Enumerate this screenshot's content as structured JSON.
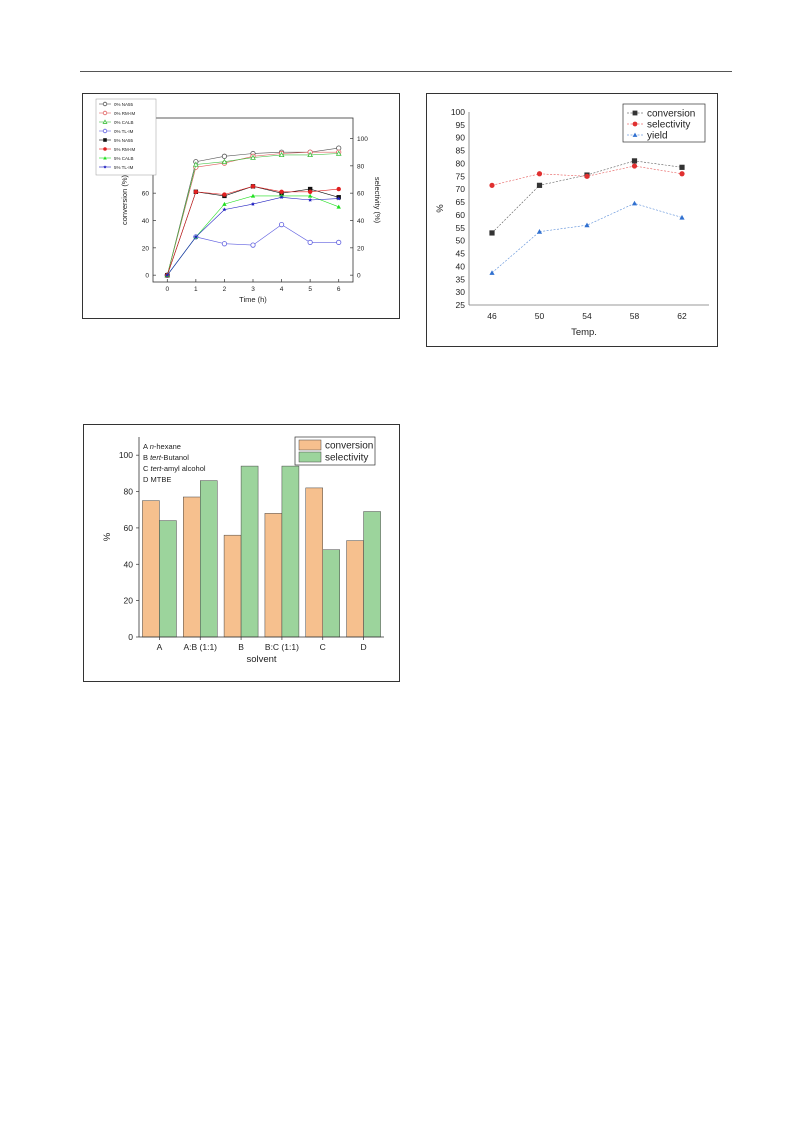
{
  "chart_data": [
    {
      "type": "line",
      "xlabel": "Time (h)",
      "ylabel": "conversion (%)",
      "y2label": "selectivity (%)",
      "x": [
        0,
        1,
        2,
        3,
        4,
        5,
        6
      ],
      "xlim": [
        -0.5,
        6.5
      ],
      "ylim": [
        -5,
        115
      ],
      "yticks": [
        0,
        20,
        40,
        60,
        80,
        100
      ],
      "xticks": [
        "0",
        "1",
        "2",
        "3",
        "4",
        "5",
        "6"
      ],
      "y2ticks": [
        "0",
        "20",
        "40",
        "60",
        "80",
        "100"
      ],
      "legend": "top-left",
      "series": [
        {
          "name": "0% NA55",
          "color": "#555555",
          "marker": "circle-open",
          "values": [
            0,
            83,
            87,
            89,
            90,
            90,
            93
          ]
        },
        {
          "name": "0% RM-IM",
          "color": "#e06060",
          "marker": "circle-open",
          "values": [
            0,
            79,
            82,
            87,
            89,
            90,
            90
          ]
        },
        {
          "name": "0% CALB",
          "color": "#40c040",
          "marker": "triangle-open",
          "values": [
            0,
            81,
            83,
            86,
            88,
            88,
            89
          ]
        },
        {
          "name": "0% TL-IM",
          "color": "#6060e0",
          "marker": "circle-open",
          "values": [
            0,
            28,
            23,
            22,
            37,
            24,
            24
          ]
        },
        {
          "name": "5% NA55",
          "color": "#111111",
          "marker": "square",
          "values": [
            0,
            61,
            58,
            65,
            60,
            63,
            57
          ]
        },
        {
          "name": "5% RM-IM",
          "color": "#e02020",
          "marker": "circle",
          "values": [
            0,
            61,
            59,
            65,
            61,
            61,
            63
          ]
        },
        {
          "name": "5% CALB",
          "color": "#20e020",
          "marker": "triangle",
          "values": [
            0,
            28,
            52,
            58,
            58,
            58,
            50
          ]
        },
        {
          "name": "5% TL-IM",
          "color": "#2020c0",
          "marker": "star",
          "values": [
            0,
            28,
            48,
            52,
            57,
            55,
            56
          ]
        }
      ]
    },
    {
      "type": "line",
      "xlabel": "Temp.",
      "ylabel": "%",
      "categories": [
        "46",
        "50",
        "54",
        "58",
        "62"
      ],
      "ylim": [
        25,
        100
      ],
      "yticks": [
        "25",
        "30",
        "35",
        "40",
        "45",
        "50",
        "55",
        "60",
        "65",
        "70",
        "75",
        "80",
        "85",
        "90",
        "95",
        "100"
      ],
      "legend": "top-right",
      "series": [
        {
          "name": "conversion",
          "color": "#333333",
          "marker": "square",
          "values": [
            53,
            71.5,
            75.5,
            81,
            78.5
          ]
        },
        {
          "name": "selectivity",
          "color": "#e03030",
          "marker": "circle",
          "values": [
            71.5,
            76,
            75,
            79,
            76
          ]
        },
        {
          "name": "yield",
          "color": "#3070d0",
          "marker": "triangle",
          "values": [
            37.5,
            53.5,
            56,
            64.5,
            59
          ]
        }
      ]
    },
    {
      "type": "bar",
      "xlabel": "solvent",
      "ylabel": "%",
      "categories": [
        "A",
        "A:B (1:1)",
        "B",
        "B:C (1:1)",
        "C",
        "D"
      ],
      "ylim": [
        0,
        110
      ],
      "yticks": [
        "0",
        "20",
        "40",
        "60",
        "80",
        "100"
      ],
      "legend": "top-right",
      "notes": [
        {
          "key": "A",
          "italic": "",
          "rest": "n-hexane",
          "label_a": "A ",
          "label_i": "n",
          "label_r": "-hexane"
        },
        {
          "key": "B",
          "label_a": "B ",
          "label_i": "tert",
          "label_r": "-Butanol"
        },
        {
          "key": "C",
          "label_a": "C ",
          "label_i": "tert",
          "label_r": "-amyl alcohol"
        },
        {
          "key": "D",
          "label_a": "D MTBE",
          "label_i": "",
          "label_r": ""
        }
      ],
      "series": [
        {
          "name": "conversion",
          "color": "#f6c08e",
          "values": [
            75,
            77,
            56,
            68,
            82,
            53
          ]
        },
        {
          "name": "selectivity",
          "color": "#9cd49c",
          "values": [
            64,
            86,
            94,
            94,
            48,
            69
          ]
        }
      ]
    }
  ]
}
